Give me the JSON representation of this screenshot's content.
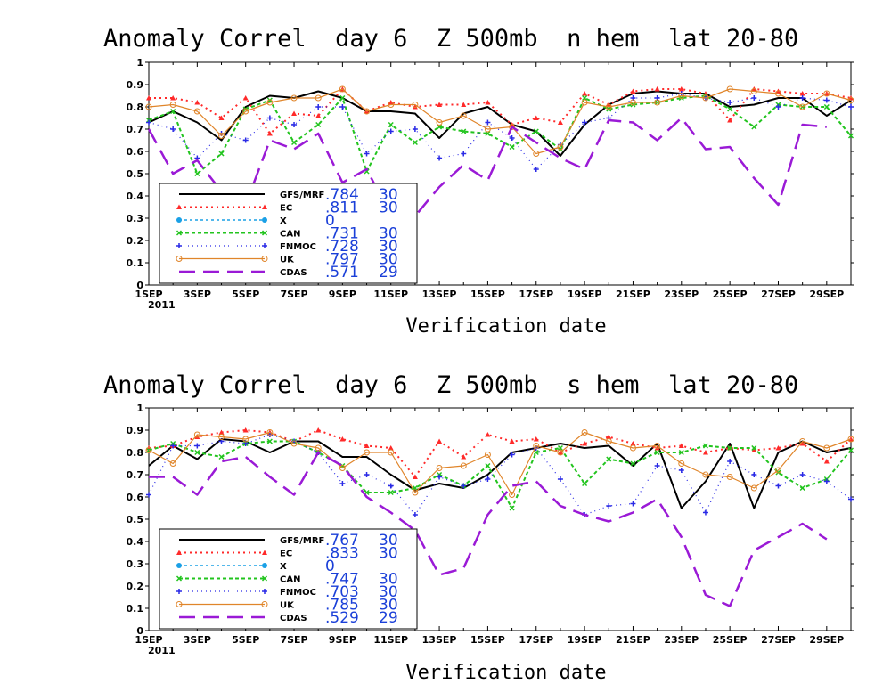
{
  "colors": {
    "GFS/MRF": "#000000",
    "EC": "#ff2a2a",
    "X": "#1aa0e6",
    "CAN": "#22c41e",
    "FNMOC": "#2a2ae6",
    "UK": "#e0852a",
    "CDAS": "#9a1ad6"
  },
  "chart_data": [
    {
      "type": "line",
      "title": "Anomaly Correl  day 6  Z 500mb  n hem  lat 20-80",
      "xlabel": "Verification date",
      "ylabel": "",
      "ylim": [
        0,
        1
      ],
      "yticks": [
        "0",
        "0.1",
        "0.2",
        "0.3",
        "0.4",
        "0.5",
        "0.6",
        "0.7",
        "0.8",
        "0.9",
        "1"
      ],
      "xlim": [
        1,
        30
      ],
      "xticks": [
        "1SEP",
        "3SEP",
        "5SEP",
        "7SEP",
        "9SEP",
        "11SEP",
        "13SEP",
        "15SEP",
        "17SEP",
        "19SEP",
        "21SEP",
        "23SEP",
        "25SEP",
        "27SEP",
        "29SEP"
      ],
      "xyear": "2011",
      "legend_position": "bottom-left",
      "grid": false,
      "series": [
        {
          "name": "GFS/MRF",
          "score": ".784",
          "count": "30",
          "values": [
            0.73,
            0.78,
            0.73,
            0.65,
            0.8,
            0.85,
            0.84,
            0.87,
            0.84,
            0.78,
            0.78,
            0.77,
            0.66,
            0.77,
            0.8,
            0.72,
            0.69,
            0.58,
            0.72,
            0.81,
            0.86,
            0.87,
            0.86,
            0.86,
            0.8,
            0.81,
            0.84,
            0.84,
            0.76,
            0.83
          ]
        },
        {
          "name": "EC",
          "score": ".811",
          "count": "30",
          "values": [
            0.84,
            0.84,
            0.82,
            0.75,
            0.84,
            0.68,
            0.77,
            0.76,
            0.88,
            0.78,
            0.82,
            0.8,
            0.81,
            0.81,
            0.82,
            0.72,
            0.75,
            0.73,
            0.86,
            0.81,
            0.87,
            0.88,
            0.88,
            0.86,
            0.74,
            0.88,
            0.87,
            0.86,
            0.86,
            0.84
          ]
        },
        {
          "name": "X",
          "score": "0",
          "count": "",
          "values": []
        },
        {
          "name": "CAN",
          "score": ".731",
          "count": "30",
          "values": [
            0.74,
            0.78,
            0.5,
            0.59,
            0.79,
            0.83,
            0.64,
            0.72,
            0.84,
            0.51,
            0.72,
            0.64,
            0.71,
            0.69,
            0.68,
            0.62,
            0.69,
            0.61,
            0.84,
            0.79,
            0.81,
            0.82,
            0.84,
            0.85,
            0.79,
            0.71,
            0.81,
            0.8,
            0.8,
            0.67
          ]
        },
        {
          "name": "FNMOC",
          "score": ".728",
          "count": "30",
          "values": [
            0.73,
            0.7,
            0.57,
            0.68,
            0.65,
            0.75,
            0.72,
            0.8,
            0.8,
            0.59,
            0.69,
            0.7,
            0.57,
            0.59,
            0.73,
            0.66,
            0.52,
            0.63,
            0.73,
            0.75,
            0.84,
            0.84,
            0.86,
            0.84,
            0.82,
            0.84,
            0.8,
            0.84,
            0.83,
            0.8
          ]
        },
        {
          "name": "UK",
          "score": ".797",
          "count": "30",
          "values": [
            0.8,
            0.81,
            0.78,
            0.67,
            0.78,
            0.82,
            0.84,
            0.84,
            0.88,
            0.78,
            0.81,
            0.81,
            0.73,
            0.76,
            0.7,
            0.71,
            0.59,
            0.62,
            0.82,
            0.8,
            0.82,
            0.82,
            0.85,
            0.84,
            0.88,
            0.87,
            0.86,
            0.8,
            0.86,
            0.83
          ]
        },
        {
          "name": "CDAS",
          "score": ".571",
          "count": "29",
          "values": [
            0.7,
            0.5,
            0.56,
            0.42,
            0.36,
            0.65,
            0.61,
            0.68,
            0.46,
            0.52,
            0.31,
            0.31,
            0.44,
            0.54,
            0.47,
            0.71,
            0.64,
            0.57,
            0.52,
            0.74,
            0.73,
            0.65,
            0.75,
            0.61,
            0.62,
            0.48,
            0.36,
            0.72,
            0.71,
            null
          ]
        }
      ]
    },
    {
      "type": "line",
      "title": "Anomaly Correl  day 6  Z 500mb  s hem  lat 20-80",
      "xlabel": "Verification date",
      "ylabel": "",
      "ylim": [
        0,
        1
      ],
      "yticks": [
        "0",
        "0.1",
        "0.2",
        "0.3",
        "0.4",
        "0.5",
        "0.6",
        "0.7",
        "0.8",
        "0.9",
        "1"
      ],
      "xlim": [
        1,
        30
      ],
      "xticks": [
        "1SEP",
        "3SEP",
        "5SEP",
        "7SEP",
        "9SEP",
        "11SEP",
        "13SEP",
        "15SEP",
        "17SEP",
        "19SEP",
        "21SEP",
        "23SEP",
        "25SEP",
        "27SEP",
        "29SEP"
      ],
      "xyear": "2011",
      "legend_position": "bottom-left",
      "grid": false,
      "series": [
        {
          "name": "GFS/MRF",
          "score": ".767",
          "count": "30",
          "values": [
            0.74,
            0.83,
            0.77,
            0.86,
            0.85,
            0.8,
            0.85,
            0.85,
            0.78,
            0.78,
            0.7,
            0.63,
            0.66,
            0.64,
            0.7,
            0.8,
            0.82,
            0.84,
            0.82,
            0.83,
            0.74,
            0.84,
            0.55,
            0.67,
            0.84,
            0.55,
            0.8,
            0.85,
            0.8,
            0.82
          ]
        },
        {
          "name": "EC",
          "score": ".833",
          "count": "30",
          "values": [
            0.82,
            0.83,
            0.87,
            0.89,
            0.9,
            0.89,
            0.85,
            0.9,
            0.86,
            0.83,
            0.82,
            0.69,
            0.85,
            0.78,
            0.88,
            0.85,
            0.86,
            0.8,
            0.84,
            0.87,
            0.84,
            0.82,
            0.83,
            0.8,
            0.82,
            0.81,
            0.82,
            0.84,
            0.76,
            0.86
          ]
        },
        {
          "name": "X",
          "score": "0",
          "count": "",
          "values": []
        },
        {
          "name": "CAN",
          "score": ".747",
          "count": "30",
          "values": [
            0.81,
            0.84,
            0.8,
            0.78,
            0.84,
            0.85,
            0.85,
            0.8,
            0.74,
            0.62,
            0.62,
            0.64,
            0.7,
            0.65,
            0.74,
            0.55,
            0.8,
            0.82,
            0.66,
            0.77,
            0.75,
            0.8,
            0.8,
            0.83,
            0.82,
            0.82,
            0.71,
            0.64,
            0.68,
            0.81
          ]
        },
        {
          "name": "FNMOC",
          "score": ".703",
          "count": "30",
          "values": [
            0.61,
            0.83,
            0.83,
            0.85,
            0.84,
            0.88,
            0.85,
            0.8,
            0.66,
            0.7,
            0.65,
            0.52,
            0.69,
            0.65,
            0.68,
            0.79,
            0.82,
            0.68,
            0.52,
            0.56,
            0.57,
            0.74,
            0.72,
            0.53,
            0.76,
            0.7,
            0.65,
            0.7,
            0.67,
            0.59
          ]
        },
        {
          "name": "UK",
          "score": ".785",
          "count": "30",
          "values": [
            0.81,
            0.75,
            0.88,
            0.87,
            0.86,
            0.89,
            0.84,
            0.82,
            0.73,
            0.8,
            0.8,
            0.62,
            0.73,
            0.74,
            0.79,
            0.61,
            0.83,
            0.8,
            0.89,
            0.85,
            0.82,
            0.83,
            0.75,
            0.7,
            0.69,
            0.64,
            0.72,
            0.85,
            0.82,
            0.86
          ]
        },
        {
          "name": "CDAS",
          "score": ".529",
          "count": "29",
          "values": [
            0.69,
            0.69,
            0.61,
            0.76,
            0.78,
            0.69,
            0.61,
            0.8,
            0.74,
            0.6,
            0.53,
            0.45,
            0.25,
            0.28,
            0.52,
            0.65,
            0.67,
            0.56,
            0.52,
            0.49,
            0.53,
            0.59,
            0.42,
            0.16,
            0.11,
            0.36,
            0.42,
            0.48,
            0.41,
            null
          ]
        }
      ]
    }
  ]
}
